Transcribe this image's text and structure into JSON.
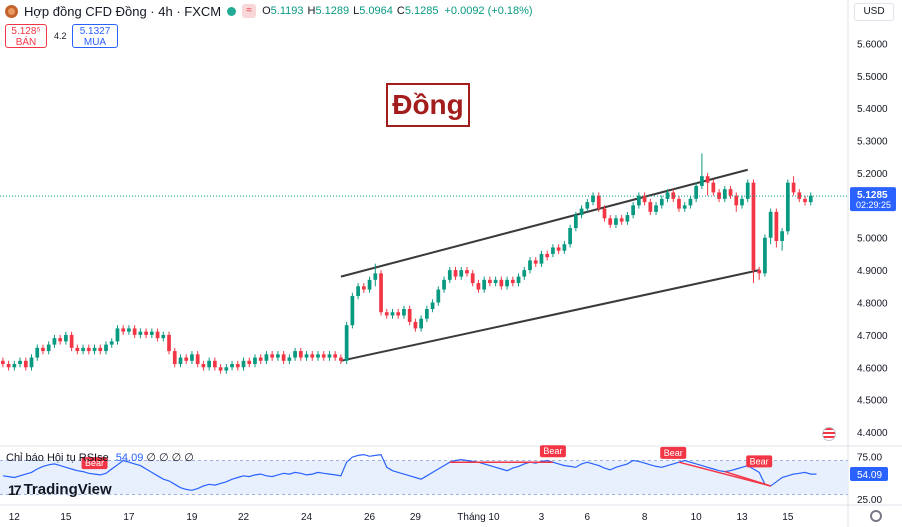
{
  "header": {
    "title": "Hợp đồng CFD Đồng · 4h · FXCM",
    "ohlc": [
      {
        "k": "O",
        "v": "5.1193"
      },
      {
        "k": "H",
        "v": "5.1289"
      },
      {
        "k": "L",
        "v": "5.0964"
      },
      {
        "k": "C",
        "v": "5.1285"
      }
    ],
    "change": "+0.0092 (+0.18%)",
    "sell_price": "5.128⁵",
    "sell_label": "BÁN",
    "buy_price": "5.1327",
    "buy_label": "MUA",
    "spread": "4.2",
    "currency": "USD"
  },
  "annotation_title": "Đồng",
  "indicator": {
    "name": "Chỉ báo Hội tụ RSI",
    "name_tail": "se",
    "value": "54.09",
    "params": "∅ ∅ ∅ ∅",
    "badge_text": "Bear"
  },
  "branding": "TradingView",
  "colors": {
    "up": "#089981",
    "down": "#f23645",
    "rsi": "#2962ff",
    "price_label": "#2962ff",
    "trendline": "#3a3a3a",
    "title": "#a31d1d"
  },
  "chart_data": {
    "type": "candlestick",
    "title": "Hợp đồng CFD Đồng · 4h · FXCM",
    "x_ticks": [
      "12",
      "15",
      "17",
      "19",
      "22",
      "24",
      "26",
      "29",
      "Tháng 10",
      "3",
      "6",
      "8",
      "10",
      "13",
      "15"
    ],
    "y_ticks": [
      "5.6000",
      "5.5000",
      "5.4000",
      "5.3000",
      "5.2000",
      "5.1000",
      "5.0000",
      "4.9000",
      "4.8000",
      "4.7000",
      "4.6000",
      "4.5000",
      "4.4000"
    ],
    "ylim": [
      4.36,
      5.66
    ],
    "last_price": "5.1285",
    "countdown": "02:29:25",
    "candles": [
      [
        4.62,
        4.61,
        4.63,
        4.6
      ],
      [
        4.61,
        4.6,
        4.62,
        4.59
      ],
      [
        4.6,
        4.61,
        4.62,
        4.59
      ],
      [
        4.61,
        4.62,
        4.63,
        4.6
      ],
      [
        4.62,
        4.6,
        4.63,
        4.59
      ],
      [
        4.6,
        4.63,
        4.64,
        4.59
      ],
      [
        4.63,
        4.66,
        4.67,
        4.62
      ],
      [
        4.66,
        4.65,
        4.67,
        4.64
      ],
      [
        4.65,
        4.67,
        4.68,
        4.64
      ],
      [
        4.67,
        4.69,
        4.7,
        4.66
      ],
      [
        4.69,
        4.68,
        4.7,
        4.67
      ],
      [
        4.68,
        4.7,
        4.71,
        4.67
      ],
      [
        4.7,
        4.66,
        4.71,
        4.65
      ],
      [
        4.66,
        4.65,
        4.67,
        4.64
      ],
      [
        4.65,
        4.66,
        4.67,
        4.64
      ],
      [
        4.66,
        4.65,
        4.67,
        4.64
      ],
      [
        4.65,
        4.66,
        4.67,
        4.64
      ],
      [
        4.66,
        4.65,
        4.67,
        4.64
      ],
      [
        4.65,
        4.67,
        4.68,
        4.64
      ],
      [
        4.67,
        4.68,
        4.69,
        4.66
      ],
      [
        4.68,
        4.72,
        4.73,
        4.67
      ],
      [
        4.72,
        4.71,
        4.73,
        4.7
      ],
      [
        4.71,
        4.72,
        4.73,
        4.7
      ],
      [
        4.72,
        4.7,
        4.73,
        4.69
      ],
      [
        4.7,
        4.71,
        4.72,
        4.69
      ],
      [
        4.71,
        4.7,
        4.72,
        4.69
      ],
      [
        4.7,
        4.71,
        4.72,
        4.69
      ],
      [
        4.71,
        4.69,
        4.72,
        4.68
      ],
      [
        4.69,
        4.7,
        4.71,
        4.68
      ],
      [
        4.7,
        4.65,
        4.71,
        4.64
      ],
      [
        4.65,
        4.61,
        4.66,
        4.6
      ],
      [
        4.61,
        4.63,
        4.64,
        4.6
      ],
      [
        4.63,
        4.62,
        4.64,
        4.61
      ],
      [
        4.62,
        4.64,
        4.65,
        4.61
      ],
      [
        4.64,
        4.61,
        4.65,
        4.6
      ],
      [
        4.61,
        4.6,
        4.62,
        4.59
      ],
      [
        4.6,
        4.62,
        4.63,
        4.59
      ],
      [
        4.62,
        4.6,
        4.63,
        4.59
      ],
      [
        4.6,
        4.59,
        4.61,
        4.58
      ],
      [
        4.59,
        4.6,
        4.61,
        4.58
      ],
      [
        4.6,
        4.61,
        4.62,
        4.59
      ],
      [
        4.61,
        4.6,
        4.62,
        4.59
      ],
      [
        4.6,
        4.62,
        4.63,
        4.59
      ],
      [
        4.62,
        4.61,
        4.63,
        4.6
      ],
      [
        4.61,
        4.63,
        4.64,
        4.6
      ],
      [
        4.63,
        4.62,
        4.64,
        4.61
      ],
      [
        4.62,
        4.64,
        4.65,
        4.61
      ],
      [
        4.64,
        4.63,
        4.65,
        4.62
      ],
      [
        4.63,
        4.64,
        4.65,
        4.62
      ],
      [
        4.64,
        4.62,
        4.65,
        4.61
      ],
      [
        4.62,
        4.63,
        4.64,
        4.61
      ],
      [
        4.63,
        4.65,
        4.66,
        4.62
      ],
      [
        4.65,
        4.63,
        4.66,
        4.62
      ],
      [
        4.63,
        4.64,
        4.65,
        4.62
      ],
      [
        4.64,
        4.63,
        4.65,
        4.62
      ],
      [
        4.63,
        4.64,
        4.65,
        4.62
      ],
      [
        4.64,
        4.63,
        4.65,
        4.62
      ],
      [
        4.63,
        4.64,
        4.65,
        4.62
      ],
      [
        4.64,
        4.63,
        4.65,
        4.62
      ],
      [
        4.63,
        4.62,
        4.64,
        4.61
      ],
      [
        4.62,
        4.73,
        4.74,
        4.61
      ],
      [
        4.73,
        4.82,
        4.83,
        4.72
      ],
      [
        4.82,
        4.85,
        4.86,
        4.81
      ],
      [
        4.85,
        4.84,
        4.86,
        4.83
      ],
      [
        4.84,
        4.87,
        4.88,
        4.83
      ],
      [
        4.87,
        4.89,
        4.92,
        4.85
      ],
      [
        4.89,
        4.77,
        4.9,
        4.76
      ],
      [
        4.77,
        4.76,
        4.78,
        4.75
      ],
      [
        4.76,
        4.77,
        4.78,
        4.75
      ],
      [
        4.77,
        4.76,
        4.78,
        4.75
      ],
      [
        4.76,
        4.78,
        4.79,
        4.75
      ],
      [
        4.78,
        4.74,
        4.79,
        4.73
      ],
      [
        4.74,
        4.72,
        4.75,
        4.71
      ],
      [
        4.72,
        4.75,
        4.76,
        4.71
      ],
      [
        4.75,
        4.78,
        4.79,
        4.74
      ],
      [
        4.78,
        4.8,
        4.81,
        4.77
      ],
      [
        4.8,
        4.84,
        4.85,
        4.79
      ],
      [
        4.84,
        4.87,
        4.88,
        4.83
      ],
      [
        4.87,
        4.9,
        4.91,
        4.86
      ],
      [
        4.9,
        4.88,
        4.91,
        4.87
      ],
      [
        4.88,
        4.9,
        4.91,
        4.87
      ],
      [
        4.9,
        4.89,
        4.91,
        4.88
      ],
      [
        4.89,
        4.86,
        4.9,
        4.85
      ],
      [
        4.86,
        4.84,
        4.87,
        4.83
      ],
      [
        4.84,
        4.87,
        4.88,
        4.83
      ],
      [
        4.87,
        4.86,
        4.88,
        4.85
      ],
      [
        4.86,
        4.87,
        4.88,
        4.85
      ],
      [
        4.87,
        4.85,
        4.88,
        4.84
      ],
      [
        4.85,
        4.87,
        4.88,
        4.84
      ],
      [
        4.87,
        4.86,
        4.88,
        4.85
      ],
      [
        4.86,
        4.88,
        4.89,
        4.85
      ],
      [
        4.88,
        4.9,
        4.91,
        4.87
      ],
      [
        4.9,
        4.93,
        4.94,
        4.89
      ],
      [
        4.93,
        4.92,
        4.94,
        4.91
      ],
      [
        4.92,
        4.95,
        4.96,
        4.91
      ],
      [
        4.95,
        4.94,
        4.96,
        4.93
      ],
      [
        4.95,
        4.97,
        4.98,
        4.94
      ],
      [
        4.97,
        4.96,
        4.98,
        4.95
      ],
      [
        4.96,
        4.98,
        4.99,
        4.95
      ],
      [
        4.98,
        5.03,
        5.04,
        4.97
      ],
      [
        5.03,
        5.07,
        5.08,
        5.02
      ],
      [
        5.07,
        5.09,
        5.1,
        5.06
      ],
      [
        5.09,
        5.11,
        5.12,
        5.08
      ],
      [
        5.11,
        5.13,
        5.14,
        5.1
      ],
      [
        5.13,
        5.09,
        5.14,
        5.08
      ],
      [
        5.09,
        5.06,
        5.1,
        5.05
      ],
      [
        5.06,
        5.04,
        5.07,
        5.03
      ],
      [
        5.04,
        5.06,
        5.07,
        5.03
      ],
      [
        5.06,
        5.05,
        5.07,
        5.04
      ],
      [
        5.05,
        5.07,
        5.08,
        5.04
      ],
      [
        5.07,
        5.1,
        5.11,
        5.06
      ],
      [
        5.1,
        5.13,
        5.14,
        5.09
      ],
      [
        5.13,
        5.11,
        5.14,
        5.1
      ],
      [
        5.11,
        5.08,
        5.12,
        5.07
      ],
      [
        5.08,
        5.1,
        5.11,
        5.07
      ],
      [
        5.1,
        5.12,
        5.13,
        5.09
      ],
      [
        5.12,
        5.14,
        5.15,
        5.11
      ],
      [
        5.14,
        5.12,
        5.15,
        5.11
      ],
      [
        5.12,
        5.09,
        5.13,
        5.08
      ],
      [
        5.09,
        5.1,
        5.11,
        5.08
      ],
      [
        5.1,
        5.12,
        5.13,
        5.09
      ],
      [
        5.12,
        5.16,
        5.17,
        5.11
      ],
      [
        5.16,
        5.19,
        5.26,
        5.15
      ],
      [
        5.19,
        5.17,
        5.2,
        5.13
      ],
      [
        5.17,
        5.14,
        5.18,
        5.13
      ],
      [
        5.14,
        5.12,
        5.15,
        5.11
      ],
      [
        5.12,
        5.15,
        5.16,
        5.11
      ],
      [
        5.15,
        5.13,
        5.16,
        5.12
      ],
      [
        5.13,
        5.1,
        5.14,
        5.08
      ],
      [
        5.1,
        5.12,
        5.13,
        5.09
      ],
      [
        5.12,
        5.17,
        5.18,
        5.11
      ],
      [
        5.17,
        4.9,
        5.18,
        4.86
      ],
      [
        4.9,
        4.89,
        4.91,
        4.87
      ],
      [
        4.89,
        5.0,
        5.01,
        4.88
      ],
      [
        5.0,
        5.08,
        5.09,
        4.98
      ],
      [
        5.08,
        4.99,
        5.09,
        4.97
      ],
      [
        4.99,
        5.02,
        5.03,
        4.96
      ],
      [
        5.02,
        5.17,
        5.18,
        5.01
      ],
      [
        5.17,
        5.14,
        5.19,
        5.13
      ],
      [
        5.14,
        5.12,
        5.15,
        5.11
      ],
      [
        5.12,
        5.11,
        5.13,
        5.1
      ],
      [
        5.11,
        5.13,
        5.14,
        5.1
      ]
    ],
    "trendlines": [
      {
        "label": "upper",
        "from_index": 59,
        "from_value": 4.88,
        "to_index": 130,
        "to_value": 5.21
      },
      {
        "label": "lower",
        "from_index": 59,
        "from_value": 4.62,
        "to_index": 132,
        "to_value": 4.9
      }
    ],
    "rsi": {
      "ylim": [
        20,
        80
      ],
      "y_ticks": [
        "75.00",
        "25.00"
      ],
      "band": [
        30,
        70
      ],
      "last": "54.09",
      "values": [
        52,
        51,
        50,
        52,
        54,
        56,
        60,
        63,
        65,
        66,
        64,
        62,
        60,
        58,
        57,
        55,
        54,
        53,
        55,
        60,
        65,
        70,
        68,
        66,
        64,
        60,
        56,
        52,
        48,
        46,
        42,
        38,
        36,
        35,
        37,
        40,
        42,
        41,
        43,
        45,
        48,
        50,
        52,
        51,
        53,
        54,
        52,
        51,
        53,
        55,
        54,
        56,
        55,
        53,
        54,
        56,
        55,
        54,
        53,
        52,
        68,
        74,
        76,
        77,
        75,
        76,
        77,
        62,
        58,
        56,
        54,
        52,
        50,
        48,
        52,
        56,
        60,
        64,
        68,
        70,
        71,
        70,
        69,
        68,
        66,
        64,
        62,
        60,
        58,
        61,
        63,
        66,
        68,
        67,
        69,
        70,
        68,
        66,
        64,
        63,
        62,
        66,
        68,
        66,
        64,
        61,
        59,
        62,
        64,
        66,
        70,
        69,
        67,
        65,
        63,
        62,
        64,
        66,
        68,
        70,
        68,
        66,
        64,
        62,
        60,
        58,
        57,
        58,
        60,
        62,
        64,
        60,
        56,
        42,
        40,
        45,
        50,
        52,
        54,
        55,
        56,
        54,
        54
      ],
      "bear_divergences": [
        [
          78,
          96
        ],
        [
          118,
          134
        ],
        [
          126,
          134
        ]
      ],
      "bear_badges_at": [
        16,
        96,
        117,
        132
      ]
    }
  }
}
